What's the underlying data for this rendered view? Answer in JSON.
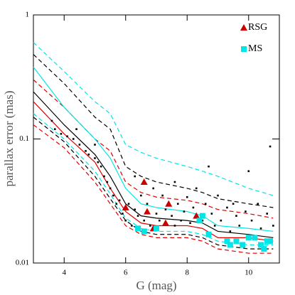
{
  "chart_data": {
    "type": "scatter",
    "xlabel": "G (mag)",
    "ylabel": "parallax error (mas)",
    "xlim": [
      3,
      11
    ],
    "ylim": [
      0.01,
      1
    ],
    "xticks": [
      4,
      6,
      8,
      10
    ],
    "yticks": [
      0.01,
      0.1,
      1
    ],
    "yscale": "log",
    "legend": "upper right",
    "series": [
      {
        "style": "dashed",
        "color": "#00e5e5",
        "x": [
          3,
          4,
          5,
          5.5,
          6,
          6.5,
          7,
          8,
          8.5,
          9,
          10,
          10.8
        ],
        "values": [
          0.6,
          0.35,
          0.2,
          0.16,
          0.09,
          0.078,
          0.07,
          0.06,
          0.055,
          0.05,
          0.04,
          0.035
        ]
      },
      {
        "style": "dashed",
        "color": "#000000",
        "x": [
          3,
          4,
          5,
          5.5,
          6,
          6.5,
          7,
          8,
          8.5,
          9,
          10,
          10.8
        ],
        "values": [
          0.48,
          0.28,
          0.15,
          0.12,
          0.06,
          0.05,
          0.045,
          0.04,
          0.037,
          0.033,
          0.03,
          0.028
        ]
      },
      {
        "style": "dashed",
        "color": "#e00000",
        "x": [
          3,
          4,
          5,
          5.5,
          6,
          6.5,
          7,
          8,
          8.5,
          9,
          10,
          10.8
        ],
        "values": [
          0.3,
          0.18,
          0.1,
          0.08,
          0.045,
          0.037,
          0.034,
          0.032,
          0.03,
          0.027,
          0.025,
          0.023
        ]
      },
      {
        "style": "solid",
        "color": "#00e5e5",
        "x": [
          3,
          4,
          5,
          5.5,
          6,
          6.5,
          7,
          8,
          8.5,
          9,
          10,
          10.8
        ],
        "values": [
          0.38,
          0.18,
          0.1,
          0.07,
          0.04,
          0.03,
          0.028,
          0.026,
          0.024,
          0.02,
          0.019,
          0.018
        ]
      },
      {
        "style": "solid",
        "color": "#000000",
        "x": [
          3,
          4,
          5,
          5.5,
          6,
          6.5,
          7,
          8,
          8.5,
          9,
          10,
          10.8
        ],
        "values": [
          0.24,
          0.13,
          0.075,
          0.05,
          0.03,
          0.024,
          0.023,
          0.022,
          0.021,
          0.018,
          0.017,
          0.016
        ]
      },
      {
        "style": "solid",
        "color": "#e00000",
        "x": [
          3,
          4,
          5,
          5.5,
          6,
          6.5,
          7,
          8,
          8.5,
          9,
          10,
          10.8
        ],
        "values": [
          0.2,
          0.11,
          0.065,
          0.04,
          0.026,
          0.021,
          0.02,
          0.02,
          0.019,
          0.016,
          0.016,
          0.015
        ]
      },
      {
        "style": "dashed",
        "color": "#00e5e5",
        "x": [
          3,
          4,
          5,
          5.5,
          6,
          6.5,
          7,
          8,
          8.5,
          9,
          10,
          10.8
        ],
        "values": [
          0.16,
          0.1,
          0.055,
          0.036,
          0.023,
          0.019,
          0.018,
          0.018,
          0.017,
          0.015,
          0.014,
          0.014
        ]
      },
      {
        "style": "dashed",
        "color": "#000000",
        "x": [
          3,
          4,
          5,
          5.5,
          6,
          6.5,
          7,
          8,
          8.5,
          9,
          10,
          10.8
        ],
        "values": [
          0.15,
          0.095,
          0.05,
          0.033,
          0.022,
          0.018,
          0.017,
          0.017,
          0.016,
          0.014,
          0.013,
          0.013
        ]
      },
      {
        "style": "dashed",
        "color": "#e00000",
        "x": [
          3,
          4,
          5,
          5.5,
          6,
          6.5,
          7,
          8,
          8.5,
          9,
          10,
          10.8
        ],
        "values": [
          0.13,
          0.085,
          0.045,
          0.03,
          0.02,
          0.017,
          0.016,
          0.016,
          0.015,
          0.013,
          0.012,
          0.012
        ]
      },
      {
        "style": "points",
        "color": "#000000",
        "x": [
          3.6,
          3.7,
          3.9,
          4.1,
          4.3,
          4.5,
          4.7,
          4.8,
          5.0,
          5.1,
          5.2,
          5.3,
          5.4,
          5.5,
          5.6,
          5.7,
          5.8,
          5.9,
          6.0,
          6.1,
          6.2,
          6.3,
          6.4,
          6.5,
          6.6,
          6.7,
          6.8,
          6.9,
          7.0,
          7.1,
          7.2,
          7.3,
          7.5,
          7.6,
          7.7,
          7.8,
          7.9,
          8.0,
          8.1,
          8.2,
          8.3,
          8.5,
          8.6,
          8.8,
          8.9,
          9.0,
          9.1,
          9.3,
          9.4,
          9.5,
          9.6,
          9.7,
          9.9,
          10.0,
          10.1,
          10.3,
          10.4,
          10.6,
          10.7,
          10.8,
          6.3,
          7.6,
          8.7,
          5.0,
          4.4
        ],
        "values": [
          0.14,
          0.12,
          0.11,
          0.105,
          0.1,
          0.09,
          0.08,
          0.075,
          0.07,
          0.065,
          0.06,
          0.05,
          0.045,
          0.04,
          0.035,
          0.03,
          0.032,
          0.025,
          0.022,
          0.03,
          0.02,
          0.027,
          0.024,
          0.035,
          0.022,
          0.03,
          0.02,
          0.04,
          0.025,
          0.022,
          0.035,
          0.027,
          0.024,
          0.02,
          0.03,
          0.022,
          0.026,
          0.034,
          0.021,
          0.028,
          0.04,
          0.022,
          0.03,
          0.025,
          0.02,
          0.035,
          0.022,
          0.028,
          0.018,
          0.03,
          0.024,
          0.02,
          0.026,
          0.055,
          0.022,
          0.03,
          0.019,
          0.025,
          0.087,
          0.02,
          0.05,
          0.045,
          0.06,
          0.09,
          0.12
        ]
      },
      {
        "style": "points",
        "marker": "triangle",
        "name": "RSG",
        "color": "#cc0000",
        "x": [
          6.6,
          6.0,
          6.7,
          7.4,
          7.3,
          6.9,
          8.3
        ],
        "values": [
          0.045,
          0.028,
          0.026,
          0.03,
          0.021,
          0.019,
          0.024
        ]
      },
      {
        "style": "points",
        "marker": "square",
        "name": "MS",
        "color": "#00e5e5",
        "x": [
          6.4,
          6.6,
          7.0,
          8.4,
          8.5,
          8.7,
          9.3,
          9.4,
          9.6,
          9.8,
          10.0,
          10.2,
          10.4,
          10.5,
          10.6,
          10.7
        ],
        "values": [
          0.019,
          0.018,
          0.019,
          0.022,
          0.024,
          0.017,
          0.015,
          0.014,
          0.015,
          0.014,
          0.016,
          0.016,
          0.014,
          0.013,
          0.015,
          0.015
        ]
      }
    ]
  }
}
